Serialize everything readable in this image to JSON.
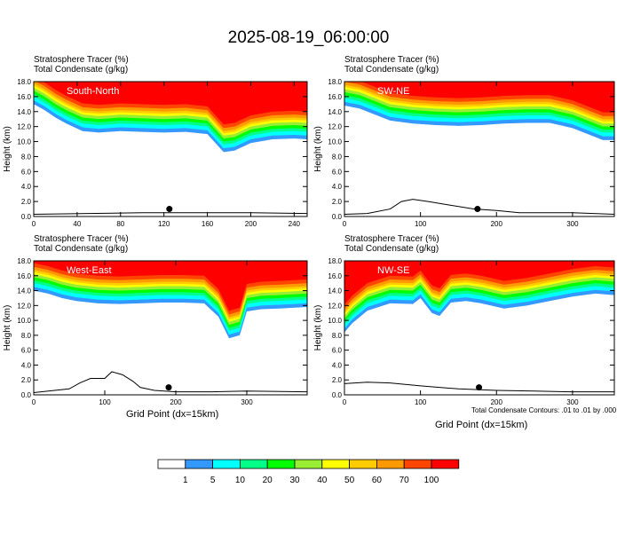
{
  "title": "2025-08-19_06:00:00",
  "panel_header": {
    "line1": "Stratosphere Tracer   (%)",
    "line2": "Total Condensate   (g/kg)"
  },
  "ylabel": "Height (km)",
  "xlabel": "Grid Point (dx=15km)",
  "contour_note": "Total Condensate Contours: .01 to .01 by .000",
  "colors": {
    "red": "#ff0000",
    "orange_red": "#ff4500",
    "orange": "#ff9900",
    "gold": "#ffcc00",
    "yellow": "#ffff00",
    "yellow_green": "#99ee33",
    "green": "#00ff00",
    "spring_green": "#00ff88",
    "cyan": "#00ffff",
    "blue": "#3399ff"
  },
  "chart_data": [
    {
      "type": "heatmap",
      "name": "South-North",
      "xlim": [
        0,
        252
      ],
      "ylim": [
        0,
        18
      ],
      "x_ticks": [
        0,
        40,
        80,
        120,
        160,
        200,
        240
      ],
      "y_ticks": [
        "0.0",
        "2.0",
        "4.0",
        "6.0",
        "8.0",
        "10.0",
        "12.0",
        "14.0",
        "16.0",
        "18.0"
      ],
      "marker": {
        "x": 125,
        "y": 1.0
      },
      "tracer_base": [
        [
          0,
          15.0
        ],
        [
          10,
          14.2
        ],
        [
          20,
          13.2
        ],
        [
          30,
          12.4
        ],
        [
          45,
          11.4
        ],
        [
          60,
          11.2
        ],
        [
          80,
          11.4
        ],
        [
          100,
          11.3
        ],
        [
          120,
          11.2
        ],
        [
          140,
          11.3
        ],
        [
          160,
          11.0
        ],
        [
          175,
          8.6
        ],
        [
          185,
          8.8
        ],
        [
          200,
          9.8
        ],
        [
          220,
          10.3
        ],
        [
          240,
          10.4
        ],
        [
          252,
          10.3
        ]
      ],
      "terrain": [
        [
          0,
          0.3
        ],
        [
          50,
          0.4
        ],
        [
          100,
          0.5
        ],
        [
          150,
          0.5
        ],
        [
          200,
          0.5
        ],
        [
          252,
          0.4
        ]
      ]
    },
    {
      "type": "heatmap",
      "name": "SW-NE",
      "xlim": [
        0,
        355
      ],
      "ylim": [
        0,
        18
      ],
      "x_ticks": [
        0,
        100,
        200,
        300
      ],
      "y_ticks": [
        "0.0",
        "2.0",
        "4.0",
        "6.0",
        "8.0",
        "10.0",
        "12.0",
        "14.0",
        "16.0",
        "18.0"
      ],
      "marker": {
        "x": 175,
        "y": 1.0
      },
      "tracer_base": [
        [
          0,
          14.8
        ],
        [
          20,
          14.4
        ],
        [
          40,
          13.6
        ],
        [
          60,
          12.8
        ],
        [
          90,
          12.4
        ],
        [
          120,
          12.2
        ],
        [
          150,
          12.1
        ],
        [
          180,
          12.2
        ],
        [
          210,
          12.4
        ],
        [
          240,
          12.5
        ],
        [
          270,
          12.5
        ],
        [
          300,
          11.8
        ],
        [
          320,
          11.0
        ],
        [
          340,
          10.2
        ],
        [
          355,
          10.2
        ]
      ],
      "terrain": [
        [
          0,
          0.3
        ],
        [
          30,
          0.4
        ],
        [
          60,
          1.0
        ],
        [
          75,
          2.0
        ],
        [
          90,
          2.3
        ],
        [
          110,
          2.0
        ],
        [
          140,
          1.5
        ],
        [
          170,
          1.0
        ],
        [
          200,
          0.8
        ],
        [
          230,
          0.5
        ],
        [
          260,
          0.5
        ],
        [
          300,
          0.5
        ],
        [
          355,
          0.3
        ]
      ]
    },
    {
      "type": "heatmap",
      "name": "West-East",
      "xlim": [
        0,
        385
      ],
      "ylim": [
        0,
        18
      ],
      "x_ticks": [
        0,
        100,
        200,
        300
      ],
      "y_ticks": [
        "0.0",
        "2.0",
        "4.0",
        "6.0",
        "8.0",
        "10.0",
        "12.0",
        "14.0",
        "16.0",
        "18.0"
      ],
      "marker": {
        "x": 190,
        "y": 1.0
      },
      "tracer_base": [
        [
          0,
          14.0
        ],
        [
          20,
          13.6
        ],
        [
          40,
          13.0
        ],
        [
          60,
          12.6
        ],
        [
          90,
          12.3
        ],
        [
          120,
          12.2
        ],
        [
          150,
          12.3
        ],
        [
          180,
          12.4
        ],
        [
          210,
          12.4
        ],
        [
          240,
          12.3
        ],
        [
          260,
          10.5
        ],
        [
          275,
          7.6
        ],
        [
          290,
          8.0
        ],
        [
          300,
          11.2
        ],
        [
          320,
          11.5
        ],
        [
          345,
          11.6
        ],
        [
          385,
          11.8
        ]
      ],
      "terrain": [
        [
          0,
          0.3
        ],
        [
          50,
          0.8
        ],
        [
          65,
          1.6
        ],
        [
          80,
          2.2
        ],
        [
          100,
          2.2
        ],
        [
          110,
          3.1
        ],
        [
          125,
          2.7
        ],
        [
          140,
          1.8
        ],
        [
          150,
          1.0
        ],
        [
          170,
          0.6
        ],
        [
          200,
          0.4
        ],
        [
          250,
          0.4
        ],
        [
          300,
          0.5
        ],
        [
          385,
          0.4
        ]
      ]
    },
    {
      "type": "heatmap",
      "name": "NW-SE",
      "xlim": [
        0,
        355
      ],
      "ylim": [
        0,
        18
      ],
      "x_ticks": [
        0,
        100,
        200,
        300
      ],
      "y_ticks": [
        "0.0",
        "2.0",
        "4.0",
        "6.0",
        "8.0",
        "10.0",
        "12.0",
        "14.0",
        "16.0",
        "18.0"
      ],
      "marker": {
        "x": 177,
        "y": 1.0
      },
      "tracer_base": [
        [
          0,
          8.4
        ],
        [
          10,
          9.6
        ],
        [
          30,
          11.3
        ],
        [
          60,
          12.3
        ],
        [
          90,
          12.2
        ],
        [
          100,
          13.0
        ],
        [
          115,
          11.0
        ],
        [
          125,
          10.6
        ],
        [
          140,
          12.4
        ],
        [
          160,
          12.6
        ],
        [
          180,
          12.3
        ],
        [
          210,
          11.6
        ],
        [
          240,
          12.0
        ],
        [
          270,
          12.6
        ],
        [
          300,
          13.2
        ],
        [
          330,
          13.6
        ],
        [
          355,
          13.4
        ]
      ],
      "terrain": [
        [
          0,
          1.5
        ],
        [
          30,
          1.7
        ],
        [
          60,
          1.6
        ],
        [
          100,
          1.2
        ],
        [
          150,
          0.8
        ],
        [
          200,
          0.6
        ],
        [
          250,
          0.5
        ],
        [
          300,
          0.4
        ],
        [
          355,
          0.4
        ]
      ]
    }
  ],
  "colorbar": {
    "labels": [
      "1",
      "5",
      "10",
      "20",
      "30",
      "40",
      "50",
      "60",
      "70",
      "100"
    ],
    "colors": [
      "#ffffff",
      "#3399ff",
      "#00ffff",
      "#00ff88",
      "#00ff00",
      "#99ee33",
      "#ffff00",
      "#ffcc00",
      "#ff9900",
      "#ff4500",
      "#ff0000"
    ]
  }
}
